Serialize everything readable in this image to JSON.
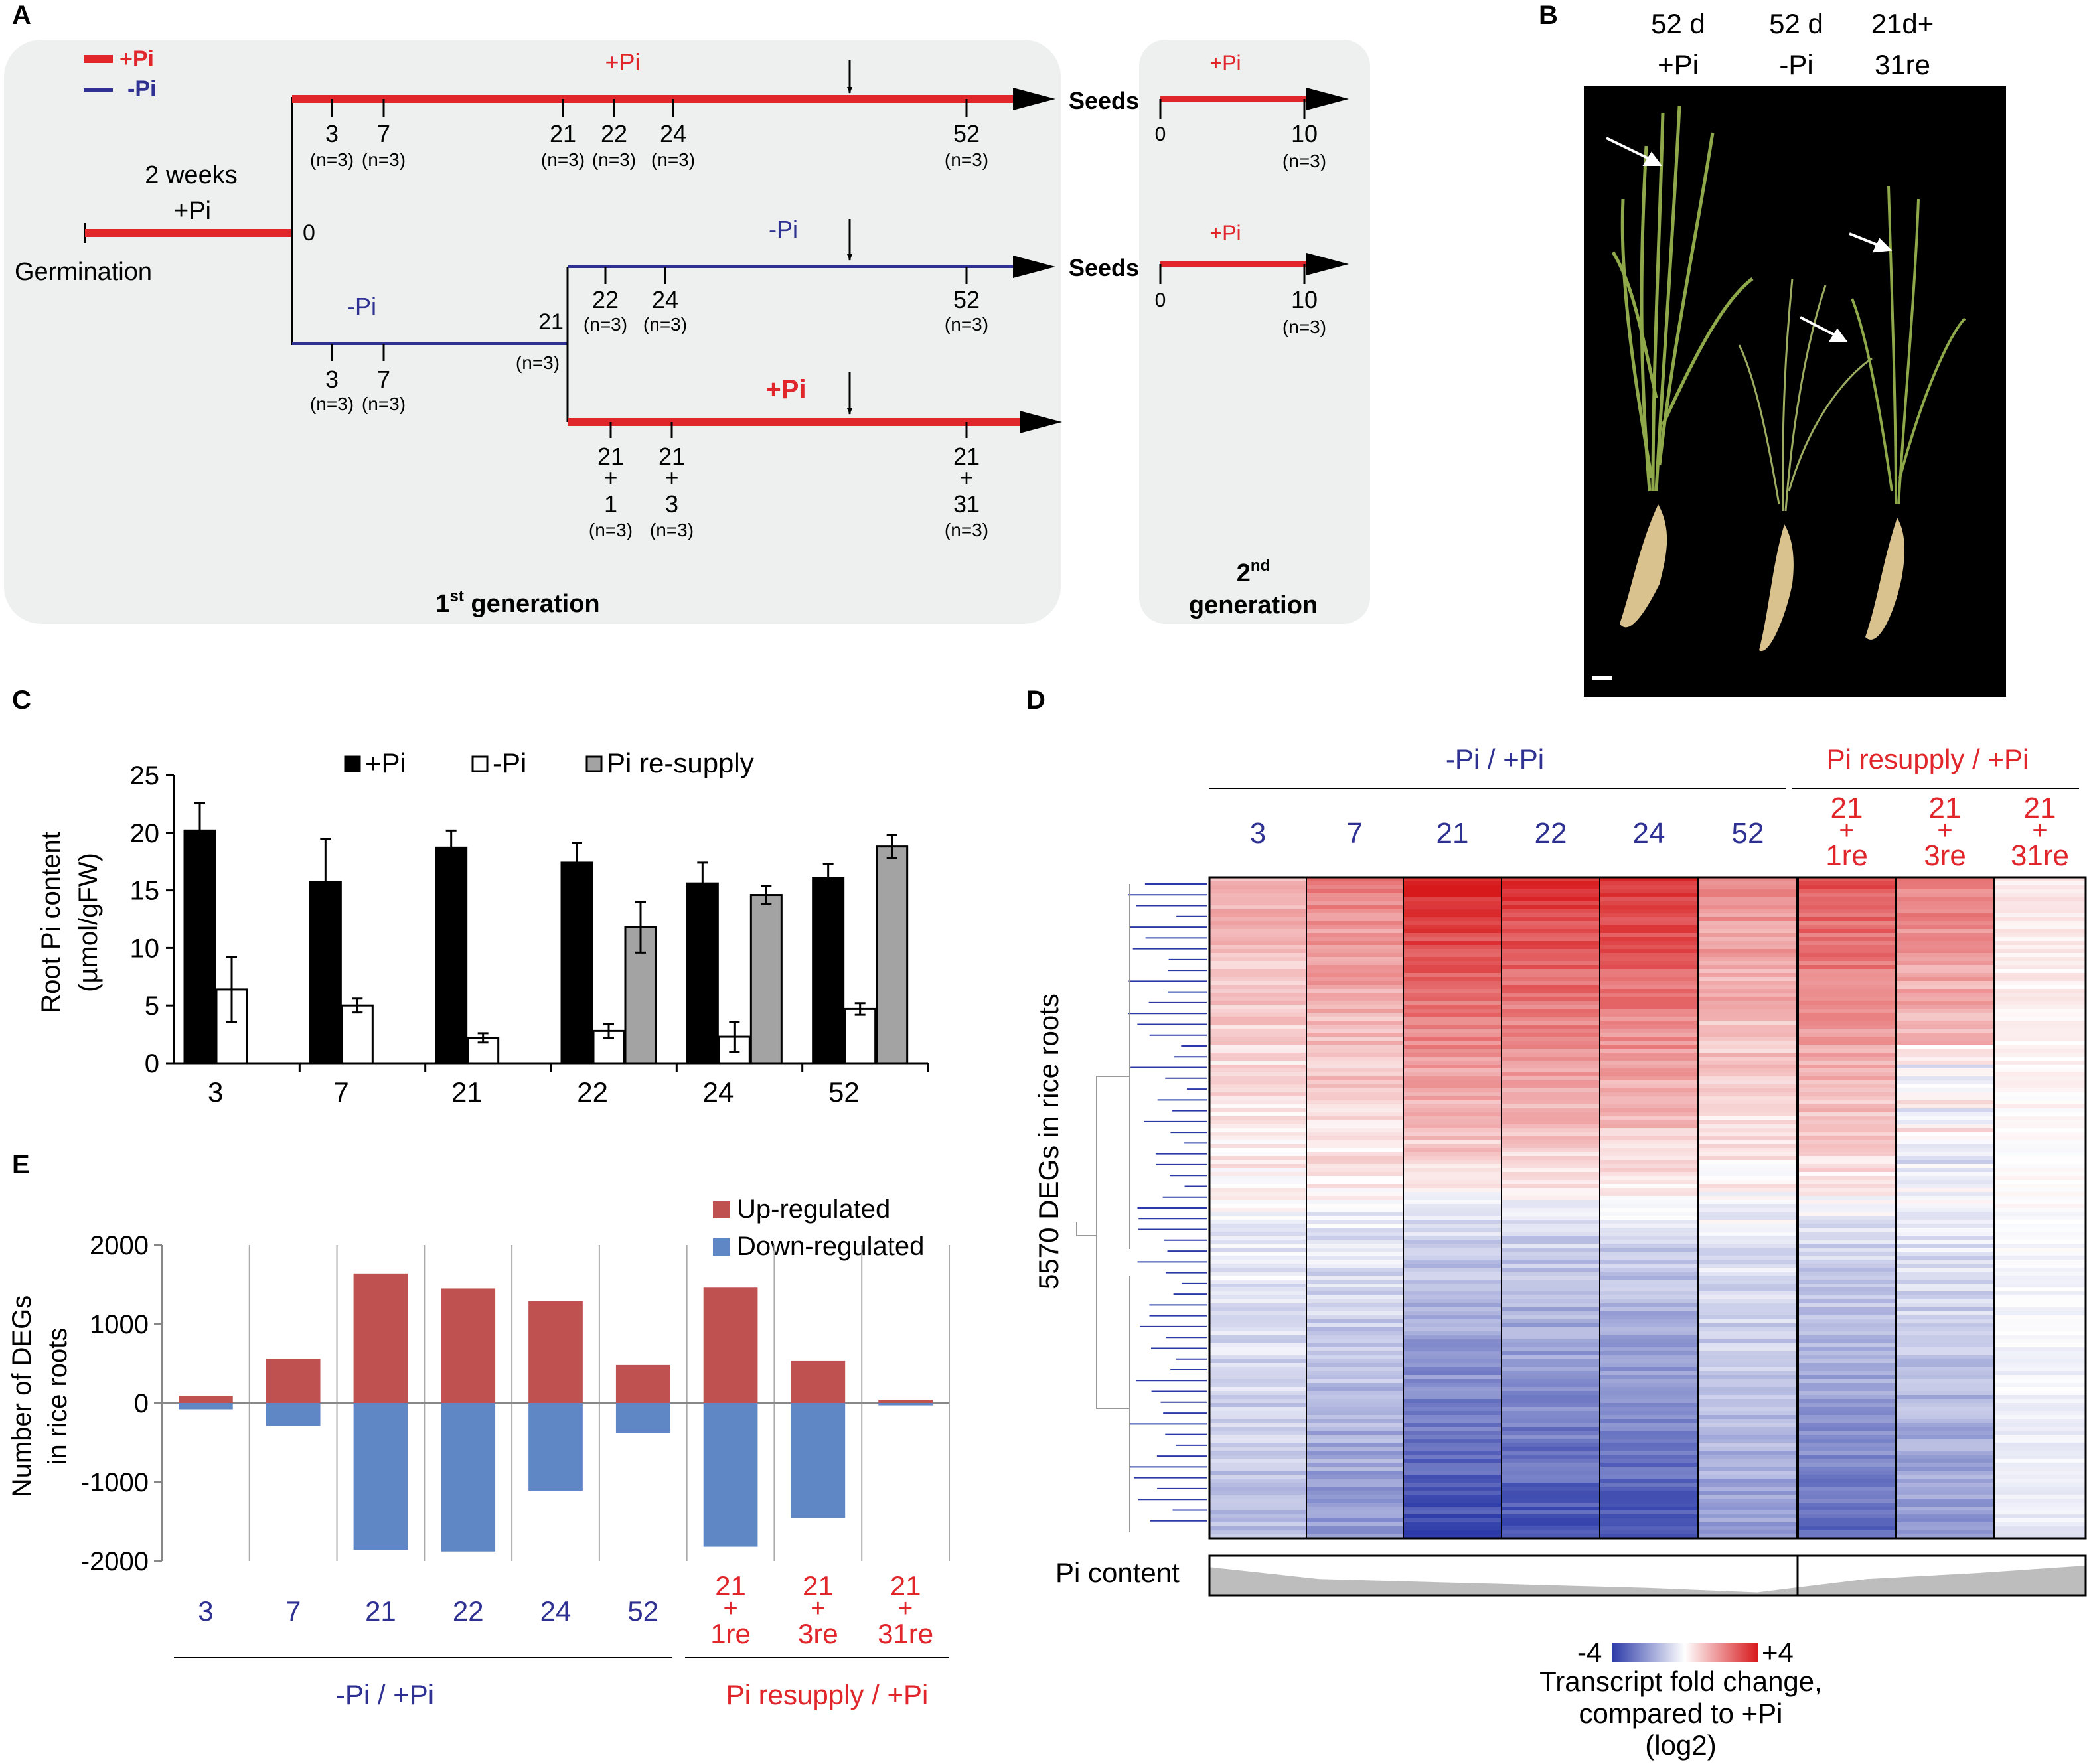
{
  "colors": {
    "red": "#e0262b",
    "blue": "#2e3192",
    "up": "#bf5250",
    "down": "#5f86c5",
    "grey_bar": "#a3a3a3",
    "panel_bg": "#eef0f0",
    "heat_red": "#d7191c",
    "heat_blue": "#2b3aa8",
    "black": "#000000"
  },
  "panelA": {
    "label": "A",
    "legend_plus": "+Pi",
    "legend_minus": "-Pi",
    "top_line_label": "+Pi",
    "minus_line_label": "-Pi",
    "resupply_line_label": "+Pi",
    "branch_minus_label": "-Pi",
    "two_weeks": "2 weeks",
    "pre_treatment": "+Pi",
    "germination": "Germination",
    "zero": "0",
    "seeds1": "Seeds",
    "seeds2": "Seeds",
    "top_ticks": [
      {
        "d": "3",
        "n": "(n=3)"
      },
      {
        "d": "7",
        "n": "(n=3)"
      },
      {
        "d": "21",
        "n": "(n=3)"
      },
      {
        "d": "22",
        "n": "(n=3)"
      },
      {
        "d": "24",
        "n": "(n=3)"
      },
      {
        "d": "52",
        "n": "(n=3)"
      }
    ],
    "minus_low_ticks": [
      {
        "d": "3",
        "n": "(n=3)"
      },
      {
        "d": "7",
        "n": "(n=3)"
      }
    ],
    "minus_branch_day": {
      "d": "21",
      "n": "(n=3)"
    },
    "minus_high_ticks": [
      {
        "d": "22",
        "n": "(n=3)"
      },
      {
        "d": "24",
        "n": "(n=3)"
      },
      {
        "d": "52",
        "n": "(n=3)"
      }
    ],
    "resupply_ticks": [
      {
        "a": "21",
        "p": "+",
        "b": "1",
        "n": "(n=3)"
      },
      {
        "a": "21",
        "p": "+",
        "b": "3",
        "n": "(n=3)"
      },
      {
        "a": "21",
        "p": "+",
        "b": "31",
        "n": "(n=3)"
      }
    ],
    "first_gen": "1",
    "first_gen_sup": "st",
    "first_gen_rest": " generation",
    "second_gen": "2",
    "second_gen_sup": "nd",
    "second_gen_rest": "generation",
    "gen2_top_label": "+Pi",
    "gen2_bot_label": "+Pi",
    "gen2_zero": "0",
    "gen2_ten": "10",
    "gen2_n": "(n=3)"
  },
  "panelB": {
    "label": "B",
    "cols": [
      {
        "l1": "52 d",
        "l2": "+Pi"
      },
      {
        "l1": "52 d",
        "l2": "-Pi"
      },
      {
        "l1": "21d+",
        "l2": "31re"
      }
    ]
  },
  "panelC": {
    "label": "C",
    "chart_data": {
      "type": "bar",
      "ylabel_line1": "Root Pi content",
      "ylabel_line2": "(µmol/gFW)",
      "ylim": [
        0,
        25
      ],
      "yticks": [
        "0",
        "5",
        "10",
        "15",
        "20",
        "25"
      ],
      "categories": [
        "3",
        "7",
        "21",
        "22",
        "24",
        "52"
      ],
      "series": [
        {
          "name": "+Pi",
          "values": [
            20.2,
            15.7,
            18.7,
            17.4,
            15.6,
            16.1
          ],
          "errors": [
            2.4,
            3.8,
            1.5,
            1.7,
            1.8,
            1.2
          ]
        },
        {
          "name": "-Pi",
          "values": [
            6.4,
            5.0,
            2.2,
            2.8,
            2.3,
            4.7
          ],
          "errors": [
            2.8,
            0.6,
            0.4,
            0.6,
            1.3,
            0.5
          ]
        },
        {
          "name": "Pi re-supply",
          "values": [
            null,
            null,
            null,
            11.8,
            14.6,
            18.8
          ],
          "errors": [
            null,
            null,
            null,
            2.2,
            0.8,
            1.0
          ]
        }
      ]
    }
  },
  "panelD": {
    "label": "D",
    "group1": "-Pi / +Pi",
    "group2": "Pi resupply / +Pi",
    "columns": [
      {
        "l1": "3"
      },
      {
        "l1": "7"
      },
      {
        "l1": "21"
      },
      {
        "l1": "22"
      },
      {
        "l1": "24"
      },
      {
        "l1": "52"
      },
      {
        "l1": "21",
        "l2": "+",
        "l3": "1re"
      },
      {
        "l1": "21",
        "l2": "+",
        "l3": "3re"
      },
      {
        "l1": "21",
        "l2": "+",
        "l3": "31re"
      }
    ],
    "ylabel": "5570 DEGs in rice roots",
    "pi_content": "Pi content",
    "pi_content_profile": [
      0.95,
      0.55,
      0.45,
      0.35,
      0.25,
      0.1,
      0.55,
      0.75,
      1.0
    ],
    "legend_min": "-4",
    "legend_max": "+4",
    "legend_title1": "Transcript fold change,",
    "legend_title2": "compared to +Pi",
    "legend_title3": "(log2)"
  },
  "panelE": {
    "label": "E",
    "chart_data": {
      "type": "bar",
      "ylabel_line1": "Number of DEGs",
      "ylabel_line2": "in rice roots",
      "ylim": [
        -2000,
        2000
      ],
      "yticks": [
        "-2000",
        "-1000",
        "0",
        "1000",
        "2000"
      ],
      "categories": [
        {
          "l1": "3"
        },
        {
          "l1": "7"
        },
        {
          "l1": "21"
        },
        {
          "l1": "22"
        },
        {
          "l1": "24"
        },
        {
          "l1": "52"
        },
        {
          "l1": "21",
          "l2": "+",
          "l3": "1re"
        },
        {
          "l1": "21",
          "l2": "+",
          "l3": "3re"
        },
        {
          "l1": "21",
          "l2": "+",
          "l3": "31re"
        }
      ],
      "series": [
        {
          "name": "Up-regulated",
          "values": [
            90,
            560,
            1640,
            1450,
            1290,
            480,
            1460,
            530,
            40
          ]
        },
        {
          "name": "Down-regulated",
          "values": [
            -80,
            -290,
            -1860,
            -1880,
            -1110,
            -380,
            -1820,
            -1460,
            -30
          ]
        }
      ],
      "group1": "-Pi / +Pi",
      "group2": "Pi resupply / +Pi"
    }
  }
}
